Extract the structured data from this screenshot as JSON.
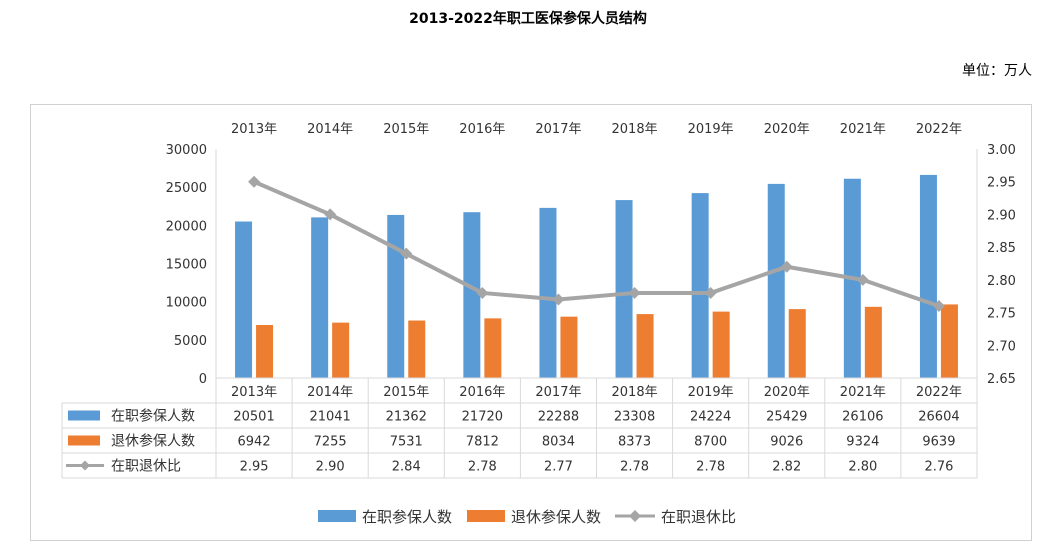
{
  "title": "2013-2022年职工医保参保人员结构",
  "unit": "单位：万人",
  "colors": {
    "working": "#5B9BD5",
    "retired": "#ED7D31",
    "ratio": "#A5A5A5"
  },
  "chart_data": {
    "type": "bar",
    "categories": [
      "2013年",
      "2014年",
      "2015年",
      "2016年",
      "2017年",
      "2018年",
      "2019年",
      "2020年",
      "2021年",
      "2022年"
    ],
    "series": [
      {
        "name": "在职参保人数",
        "type": "bar",
        "axis": "left",
        "values": [
          20501,
          21041,
          21362,
          21720,
          22288,
          23308,
          24224,
          25429,
          26106,
          26604
        ],
        "labels": [
          "20501",
          "21041",
          "21362",
          "21720",
          "22288",
          "23308",
          "24224",
          "25429",
          "26106",
          "26604"
        ]
      },
      {
        "name": "退休参保人数",
        "type": "bar",
        "axis": "left",
        "values": [
          6942,
          7255,
          7531,
          7812,
          8034,
          8373,
          8700,
          9026,
          9324,
          9639
        ],
        "labels": [
          "6942",
          "7255",
          "7531",
          "7812",
          "8034",
          "8373",
          "8700",
          "9026",
          "9324",
          "9639"
        ]
      },
      {
        "name": "在职退休比",
        "type": "line",
        "axis": "right",
        "values": [
          2.95,
          2.9,
          2.84,
          2.78,
          2.77,
          2.78,
          2.78,
          2.82,
          2.8,
          2.76
        ],
        "labels": [
          "2.95",
          "2.90",
          "2.84",
          "2.78",
          "2.77",
          "2.78",
          "2.78",
          "2.82",
          "2.80",
          "2.76"
        ]
      }
    ],
    "ylim": [
      0,
      30000
    ],
    "y2lim": [
      2.65,
      3.0
    ],
    "yticks": [
      "0",
      "5000",
      "10000",
      "15000",
      "20000",
      "25000",
      "30000"
    ],
    "y2ticks": [
      "2.65",
      "2.70",
      "2.75",
      "2.80",
      "2.85",
      "2.90",
      "2.95",
      "3.00"
    ],
    "grid": false,
    "legend": "bottom",
    "data_table": true
  }
}
